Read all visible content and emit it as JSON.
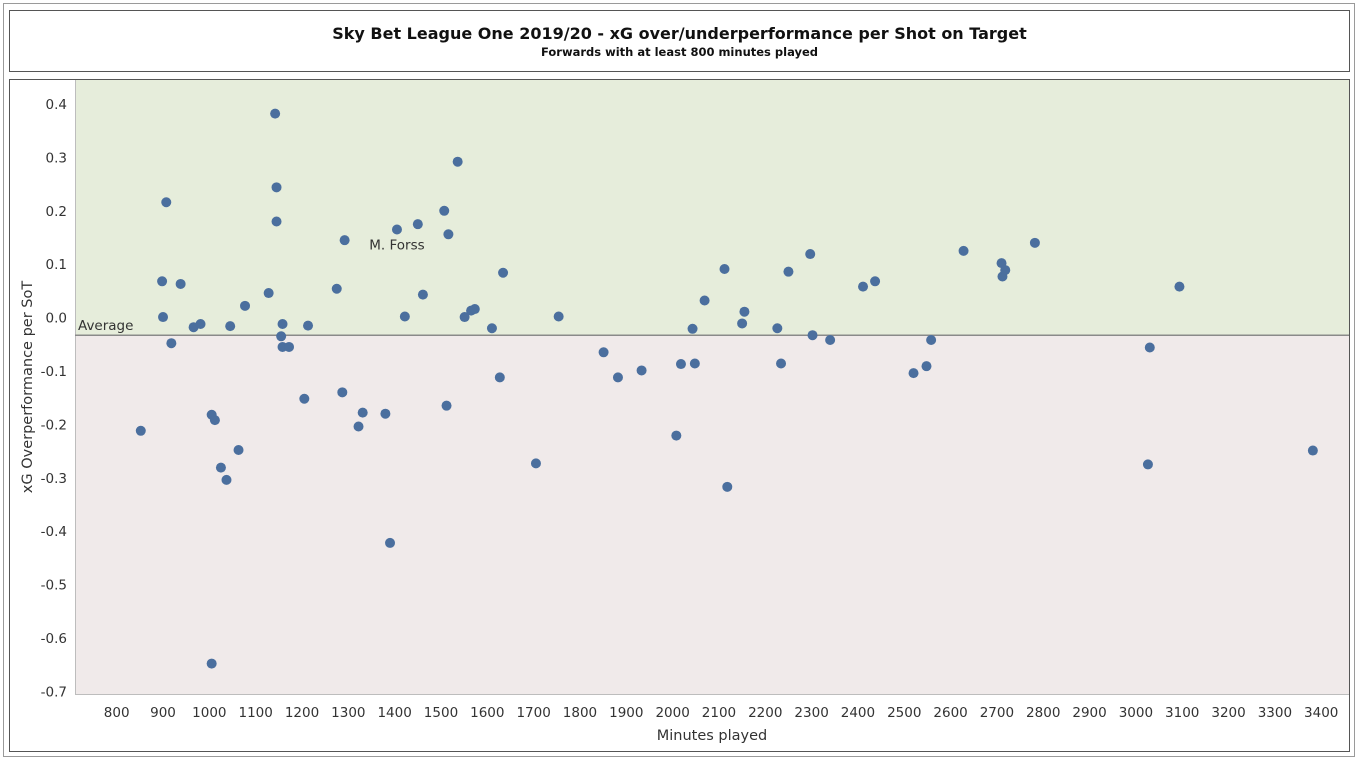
{
  "title": "Sky Bet League One 2019/20 - xG over/underperformance per Shot on Target",
  "subtitle": "Forwards with at least 800 minutes played",
  "chart_data": {
    "type": "scatter",
    "xlabel": "Minutes played",
    "ylabel": "xG Overperformance per SoT",
    "xlim": [
      710,
      3460
    ],
    "ylim": [
      -0.705,
      0.445
    ],
    "xticks": [
      800,
      900,
      1000,
      1100,
      1200,
      1300,
      1400,
      1500,
      1600,
      1700,
      1800,
      1900,
      2000,
      2100,
      2200,
      2300,
      2400,
      2500,
      2600,
      2700,
      2800,
      2900,
      3000,
      3100,
      3200,
      3300,
      3400
    ],
    "yticks": [
      0.4,
      0.3,
      0.2,
      0.1,
      0.0,
      -0.1,
      -0.2,
      -0.3,
      -0.4,
      -0.5,
      -0.6,
      -0.7
    ],
    "ytick_labels": [
      "0.4",
      "0.3",
      "0.2",
      "0.1",
      "0.0",
      "-0.1",
      "-0.2",
      "-0.3",
      "-0.4",
      "-0.5",
      "-0.6",
      "-0.7"
    ],
    "average": -0.033,
    "average_label": "Average",
    "colors": {
      "above_band": "#e6eddb",
      "below_band": "#f0eaea",
      "point": "#4b6f9e",
      "average_line": "#8a8a8a"
    },
    "annotations": [
      {
        "text": "M. Forss",
        "x": 1405,
        "y": 0.135
      }
    ],
    "points": [
      {
        "x": 852,
        "y": -0.212
      },
      {
        "x": 898,
        "y": 0.068
      },
      {
        "x": 900,
        "y": 0.001
      },
      {
        "x": 907,
        "y": 0.216
      },
      {
        "x": 918,
        "y": -0.048
      },
      {
        "x": 938,
        "y": 0.063
      },
      {
        "x": 966,
        "y": -0.018
      },
      {
        "x": 981,
        "y": -0.012
      },
      {
        "x": 1005,
        "y": -0.182
      },
      {
        "x": 1005,
        "y": -0.648
      },
      {
        "x": 1012,
        "y": -0.192
      },
      {
        "x": 1025,
        "y": -0.281
      },
      {
        "x": 1037,
        "y": -0.304
      },
      {
        "x": 1045,
        "y": -0.016
      },
      {
        "x": 1063,
        "y": -0.248
      },
      {
        "x": 1077,
        "y": 0.022
      },
      {
        "x": 1128,
        "y": 0.046
      },
      {
        "x": 1142,
        "y": 0.382
      },
      {
        "x": 1145,
        "y": 0.244
      },
      {
        "x": 1145,
        "y": 0.18
      },
      {
        "x": 1155,
        "y": -0.035
      },
      {
        "x": 1158,
        "y": -0.012
      },
      {
        "x": 1158,
        "y": -0.055
      },
      {
        "x": 1172,
        "y": -0.055
      },
      {
        "x": 1205,
        "y": -0.152
      },
      {
        "x": 1213,
        "y": -0.015
      },
      {
        "x": 1275,
        "y": 0.054
      },
      {
        "x": 1287,
        "y": -0.14
      },
      {
        "x": 1292,
        "y": 0.145
      },
      {
        "x": 1322,
        "y": -0.204
      },
      {
        "x": 1331,
        "y": -0.178
      },
      {
        "x": 1380,
        "y": -0.18
      },
      {
        "x": 1390,
        "y": -0.422
      },
      {
        "x": 1405,
        "y": 0.165
      },
      {
        "x": 1422,
        "y": 0.002
      },
      {
        "x": 1450,
        "y": 0.175
      },
      {
        "x": 1461,
        "y": 0.043
      },
      {
        "x": 1507,
        "y": 0.2
      },
      {
        "x": 1512,
        "y": -0.165
      },
      {
        "x": 1516,
        "y": 0.156
      },
      {
        "x": 1536,
        "y": 0.292
      },
      {
        "x": 1551,
        "y": 0.001
      },
      {
        "x": 1565,
        "y": 0.013
      },
      {
        "x": 1573,
        "y": 0.016
      },
      {
        "x": 1610,
        "y": -0.02
      },
      {
        "x": 1627,
        "y": -0.112
      },
      {
        "x": 1634,
        "y": 0.084
      },
      {
        "x": 1705,
        "y": -0.273
      },
      {
        "x": 1754,
        "y": 0.002
      },
      {
        "x": 1851,
        "y": -0.065
      },
      {
        "x": 1882,
        "y": -0.112
      },
      {
        "x": 1933,
        "y": -0.099
      },
      {
        "x": 2008,
        "y": -0.221
      },
      {
        "x": 2018,
        "y": -0.087
      },
      {
        "x": 2043,
        "y": -0.021
      },
      {
        "x": 2048,
        "y": -0.086
      },
      {
        "x": 2069,
        "y": 0.032
      },
      {
        "x": 2112,
        "y": 0.091
      },
      {
        "x": 2118,
        "y": -0.317
      },
      {
        "x": 2150,
        "y": -0.011
      },
      {
        "x": 2155,
        "y": 0.011
      },
      {
        "x": 2226,
        "y": -0.02
      },
      {
        "x": 2234,
        "y": -0.086
      },
      {
        "x": 2250,
        "y": 0.086
      },
      {
        "x": 2297,
        "y": 0.119
      },
      {
        "x": 2302,
        "y": -0.033
      },
      {
        "x": 2340,
        "y": -0.042
      },
      {
        "x": 2411,
        "y": 0.058
      },
      {
        "x": 2437,
        "y": 0.068
      },
      {
        "x": 2520,
        "y": -0.104
      },
      {
        "x": 2548,
        "y": -0.091
      },
      {
        "x": 2558,
        "y": -0.042
      },
      {
        "x": 2628,
        "y": 0.125
      },
      {
        "x": 2710,
        "y": 0.102
      },
      {
        "x": 2712,
        "y": 0.077
      },
      {
        "x": 2718,
        "y": 0.089
      },
      {
        "x": 2782,
        "y": 0.14
      },
      {
        "x": 3026,
        "y": -0.275
      },
      {
        "x": 3030,
        "y": -0.056
      },
      {
        "x": 3094,
        "y": 0.058
      },
      {
        "x": 3382,
        "y": -0.249
      }
    ]
  }
}
